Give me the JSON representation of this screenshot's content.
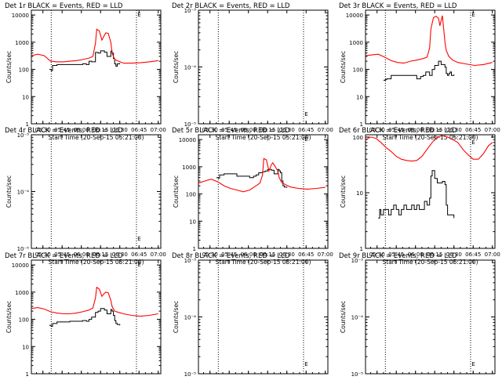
{
  "figure": {
    "xlabel": "Start Time (20-Sep-15 05:21:00)",
    "ylabel": "Counts/sec",
    "x_ticks": [
      "05:30",
      "05:45",
      "06:00",
      "06:15",
      "06:30",
      "06:45",
      "07:00"
    ],
    "x_tick_minutes": [
      9,
      24,
      39,
      54,
      69,
      84,
      99
    ],
    "x_range_minutes": [
      0,
      101
    ],
    "vlines_minutes": [
      15.5,
      82
    ],
    "colors": {
      "events": "#000000",
      "lld": "#ff0000"
    }
  },
  "chart_data": [
    {
      "type": "line",
      "title": "Det 1r BLACK = Events, RED = LLD",
      "yscale": "log",
      "ylim": [
        1,
        15000
      ],
      "y_ticks": [
        "1",
        "10",
        "100",
        "1000",
        "10000"
      ],
      "y_tick_values": [
        1,
        10,
        100,
        1000,
        10000
      ],
      "marker": {
        "label": "E",
        "x": 84,
        "y": 11500
      },
      "series": [
        {
          "name": "Events",
          "x": [
            14,
            15.5,
            16.5,
            20,
            30,
            40,
            43,
            45,
            47,
            50,
            52,
            54,
            57,
            59,
            62,
            63,
            64,
            65,
            66,
            67,
            69
          ],
          "y": [
            100,
            90,
            140,
            150,
            150,
            160,
            150,
            200,
            190,
            420,
            400,
            480,
            430,
            300,
            470,
            400,
            250,
            160,
            130,
            160,
            170
          ]
        },
        {
          "name": "LLD",
          "x": [
            0,
            5,
            10,
            15,
            20,
            25,
            30,
            35,
            40,
            45,
            48,
            50,
            51,
            53,
            55,
            57,
            58,
            60,
            62,
            63,
            65,
            68,
            72,
            78,
            85,
            92,
            99
          ],
          "y": [
            320,
            360,
            320,
            200,
            190,
            190,
            200,
            210,
            230,
            260,
            300,
            900,
            3000,
            2600,
            1200,
            1800,
            2200,
            2100,
            1000,
            400,
            230,
            200,
            170,
            170,
            175,
            190,
            210
          ]
        }
      ]
    },
    {
      "type": "line",
      "title": "Det 2r BLACK = Events, RED = LLD",
      "yscale": "log",
      "ylim": [
        1e-05,
        0.001
      ],
      "y_ticks": [
        "10⁻⁵",
        "10⁻⁴",
        "10⁻³"
      ],
      "y_tick_values": [
        1e-05,
        0.0001,
        0.001
      ],
      "marker": {
        "label": "E",
        "x": 84,
        "y": 1.55e-05
      },
      "series": []
    },
    {
      "type": "line",
      "title": "Det 3r BLACK = Events, RED = LLD",
      "yscale": "log",
      "ylim": [
        1,
        15000
      ],
      "y_ticks": [
        "1",
        "10",
        "100",
        "1000",
        "10000"
      ],
      "y_tick_values": [
        1,
        10,
        100,
        1000,
        10000
      ],
      "marker": {
        "label": "E",
        "x": 84,
        "y": 11500
      },
      "series": [
        {
          "name": "Events",
          "x": [
            14,
            15.5,
            16.5,
            20,
            30,
            40,
            43,
            45,
            47,
            50,
            52,
            54,
            57,
            59,
            62,
            63,
            64,
            65,
            66,
            67,
            69
          ],
          "y": [
            40,
            42,
            45,
            60,
            60,
            45,
            55,
            60,
            80,
            60,
            100,
            140,
            200,
            150,
            120,
            70,
            60,
            70,
            80,
            60,
            65
          ]
        },
        {
          "name": "LLD",
          "x": [
            0,
            5,
            10,
            15,
            20,
            25,
            30,
            35,
            40,
            45,
            48,
            50,
            51,
            53,
            55,
            57,
            58,
            60,
            62,
            63,
            65,
            68,
            72,
            78,
            85,
            92,
            99
          ],
          "y": [
            320,
            340,
            360,
            280,
            210,
            180,
            170,
            200,
            220,
            250,
            280,
            600,
            3000,
            8000,
            9000,
            7500,
            4000,
            9500,
            1000,
            500,
            300,
            220,
            180,
            160,
            140,
            150,
            180
          ]
        }
      ]
    },
    {
      "type": "line",
      "title": "Det 4r BLACK = Events, RED = LLD",
      "yscale": "log",
      "ylim": [
        1e-05,
        0.001
      ],
      "y_ticks": [
        "10⁻⁵",
        "10⁻⁴",
        "10⁻³"
      ],
      "y_tick_values": [
        1e-05,
        0.0001,
        0.001
      ],
      "marker": {
        "label": "E",
        "x": 84,
        "y": 1.55e-05
      },
      "series": []
    },
    {
      "type": "line",
      "title": "Det 5r BLACK = Events, RED = LLD",
      "yscale": "log",
      "ylim": [
        1,
        15000
      ],
      "y_ticks": [
        "1",
        "10",
        "100",
        "1000",
        "10000"
      ],
      "y_tick_values": [
        1,
        10,
        100,
        1000,
        10000
      ],
      "marker": {
        "label": "E",
        "x": 84,
        "y": 11500
      },
      "series": [
        {
          "name": "Events",
          "x": [
            14,
            15.5,
            16.5,
            20,
            30,
            40,
            43,
            45,
            47,
            50,
            52,
            54,
            57,
            59,
            62,
            63,
            64,
            65,
            66,
            67,
            69
          ],
          "y": [
            400,
            380,
            500,
            550,
            450,
            400,
            450,
            500,
            600,
            650,
            700,
            800,
            750,
            550,
            800,
            700,
            600,
            300,
            200,
            180,
            170
          ]
        },
        {
          "name": "LLD",
          "x": [
            0,
            5,
            10,
            15,
            20,
            25,
            30,
            35,
            40,
            45,
            48,
            50,
            51,
            53,
            55,
            57,
            58,
            60,
            62,
            63,
            65,
            68,
            72,
            78,
            85,
            92,
            99
          ],
          "y": [
            250,
            300,
            350,
            280,
            200,
            160,
            140,
            120,
            140,
            200,
            250,
            500,
            2000,
            1800,
            700,
            1200,
            1400,
            1000,
            700,
            400,
            260,
            220,
            180,
            160,
            150,
            160,
            175
          ]
        }
      ]
    },
    {
      "type": "line",
      "title": "Det 6r BLACK = Events, RED = LLD",
      "yscale": "log",
      "ylim": [
        1,
        110
      ],
      "y_ticks": [
        "1",
        "10",
        "100"
      ],
      "y_tick_values": [
        1,
        10,
        100
      ],
      "marker": {
        "label": "E",
        "x": 84,
        "y": 85
      },
      "series": [
        {
          "name": "Events",
          "x": [
            10,
            11,
            12,
            14,
            16,
            18,
            20,
            22,
            24,
            26,
            28,
            30,
            32,
            34,
            36,
            38,
            40,
            42,
            44,
            46,
            48,
            50,
            51,
            52,
            54,
            56,
            58,
            60,
            62,
            63,
            64,
            65,
            67,
            69
          ],
          "y": [
            3.5,
            5,
            4,
            5,
            5,
            4,
            5,
            6,
            5,
            4,
            5,
            6,
            5,
            5,
            6,
            5,
            6,
            5,
            5,
            7,
            6,
            8,
            20,
            25,
            18,
            15,
            15,
            16,
            14,
            6,
            4,
            4,
            4,
            3.5
          ]
        },
        {
          "name": "LLD",
          "x": [
            0,
            4,
            8,
            12,
            16,
            20,
            24,
            28,
            32,
            36,
            40,
            44,
            48,
            52,
            56,
            60,
            64,
            68,
            72,
            76,
            80,
            84,
            88,
            92,
            96,
            99
          ],
          "y": [
            90,
            100,
            95,
            80,
            65,
            55,
            45,
            40,
            38,
            37,
            38,
            45,
            60,
            80,
            100,
            105,
            100,
            90,
            80,
            60,
            48,
            40,
            40,
            50,
            70,
            80
          ]
        }
      ]
    },
    {
      "type": "line",
      "title": "Det 7r BLACK = Events, RED = LLD",
      "yscale": "log",
      "ylim": [
        1,
        15000
      ],
      "y_ticks": [
        "1",
        "10",
        "100",
        "1000",
        "10000"
      ],
      "y_tick_values": [
        1,
        10,
        100,
        1000,
        10000
      ],
      "marker": {
        "label": "E",
        "x": 84,
        "y": 11500
      },
      "series": [
        {
          "name": "Events",
          "x": [
            14,
            15.5,
            16.5,
            20,
            30,
            40,
            43,
            45,
            47,
            50,
            52,
            54,
            57,
            59,
            62,
            63,
            64,
            65,
            66,
            67,
            69
          ],
          "y": [
            60,
            55,
            70,
            80,
            85,
            90,
            85,
            100,
            120,
            180,
            200,
            250,
            220,
            160,
            230,
            200,
            140,
            90,
            70,
            65,
            60
          ]
        },
        {
          "name": "LLD",
          "x": [
            0,
            5,
            10,
            15,
            20,
            25,
            30,
            35,
            40,
            45,
            48,
            50,
            51,
            53,
            55,
            57,
            58,
            60,
            62,
            63,
            65,
            68,
            72,
            78,
            85,
            92,
            99
          ],
          "y": [
            250,
            270,
            240,
            190,
            170,
            160,
            160,
            170,
            190,
            220,
            260,
            600,
            1500,
            1300,
            700,
            900,
            1000,
            950,
            500,
            300,
            200,
            180,
            160,
            140,
            130,
            140,
            160
          ]
        }
      ]
    },
    {
      "type": "line",
      "title": "Det 8r BLACK = Events, RED = LLD",
      "yscale": "log",
      "ylim": [
        1e-05,
        0.001
      ],
      "y_ticks": [
        "10⁻⁵",
        "10⁻⁴",
        "10⁻³"
      ],
      "y_tick_values": [
        1e-05,
        0.0001,
        0.001
      ],
      "marker": {
        "label": "E",
        "x": 84,
        "y": 1.55e-05
      },
      "series": []
    },
    {
      "type": "line",
      "title": "Det 9r BLACK = Events, RED = LLD",
      "yscale": "log",
      "ylim": [
        1e-05,
        0.001
      ],
      "y_ticks": [
        "10⁻⁵",
        "10⁻⁴",
        "10⁻³"
      ],
      "y_tick_values": [
        1e-05,
        0.0001,
        0.001
      ],
      "marker": {
        "label": "E",
        "x": 84,
        "y": 1.55e-05
      },
      "series": []
    }
  ]
}
